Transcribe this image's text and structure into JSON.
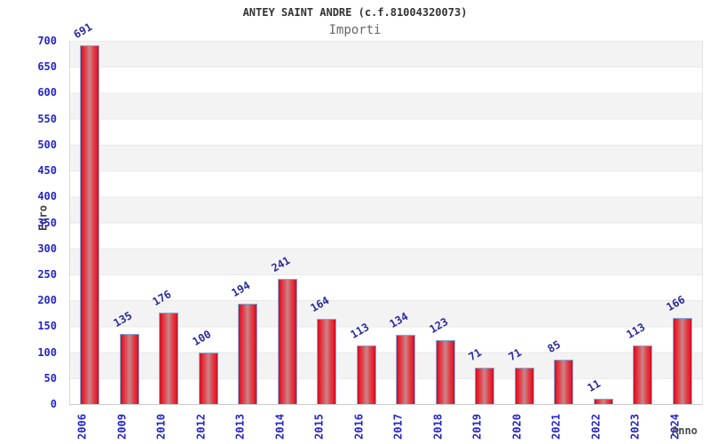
{
  "header": {
    "title": "ANTEY SAINT ANDRE (c.f.81004320073)",
    "subtitle": "Importi"
  },
  "chart_data": {
    "type": "bar",
    "title": "ANTEY SAINT ANDRE (c.f.81004320073)",
    "subtitle": "Importi",
    "categories": [
      "2006",
      "2009",
      "2010",
      "2012",
      "2013",
      "2014",
      "2015",
      "2016",
      "2017",
      "2018",
      "2019",
      "2020",
      "2021",
      "2022",
      "2023",
      "2024"
    ],
    "values": [
      691,
      135,
      176,
      100,
      194,
      241,
      164,
      113,
      134,
      123,
      71,
      71,
      85,
      11,
      113,
      166
    ],
    "xlabel": "Anno",
    "ylabel": "Euro",
    "ylim": [
      0,
      700
    ],
    "ytick_step": 50,
    "yticks": [
      0,
      50,
      100,
      150,
      200,
      250,
      300,
      350,
      400,
      450,
      500,
      550,
      600,
      650,
      700
    ],
    "grid": true,
    "legend": "none",
    "colors": {
      "bar_fill": "#e81b2c",
      "bar_highlight": "#c9858a",
      "bar_border": "#7ab0e0",
      "value_label": "#2a2a9c",
      "axis_tick_label": "#2424cf",
      "axis_title": "#3d3d3d",
      "band_gray": "#f3f3f3",
      "band_white": "#ffffff",
      "gridline": "#e9e9e9",
      "title_text": "#333333",
      "subtitle_text": "#666666"
    }
  }
}
